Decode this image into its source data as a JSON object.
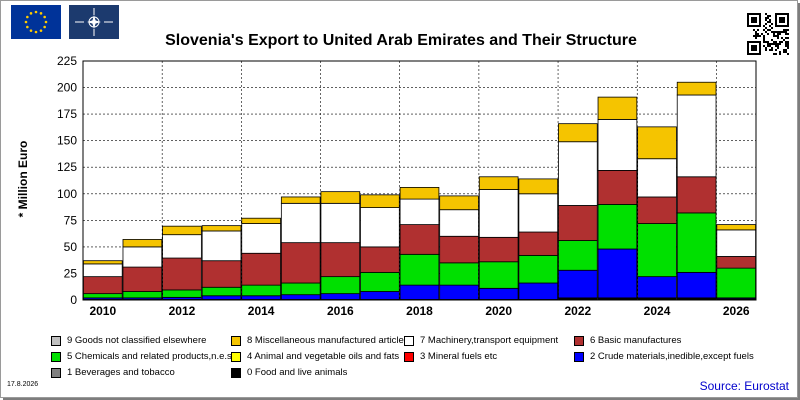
{
  "title": "Slovenia's Export to United Arab Emirates and Their Structure",
  "date": "17.8.2026",
  "source": "Source: Eurostat",
  "icons": {
    "eu_flag": "eu-flag-icon",
    "nato_flag": "nato-flag-icon",
    "qr": "qr-code-icon"
  },
  "colors": {
    "eu_flag_bg": "#003399",
    "eu_star": "#ffcc00",
    "nato_bg": "#1c3a6e",
    "source_text": "#0000cc"
  },
  "chart_data": {
    "type": "bar",
    "stacked": true,
    "title": "Slovenia's Export to United Arab Emirates and Their Structure",
    "ylabel": "* Million Euro",
    "xlabel": "",
    "ylim": [
      0,
      225
    ],
    "yticks": [
      0,
      25,
      50,
      75,
      100,
      125,
      150,
      175,
      200,
      225
    ],
    "grid": true,
    "legend_position": "bottom",
    "categories": [
      "2010",
      "2011",
      "2012",
      "2013",
      "2014",
      "2015",
      "2016",
      "2017",
      "2018",
      "2019",
      "2020",
      "2021",
      "2022",
      "2023",
      "2024",
      "2025",
      "2026"
    ],
    "xtick_labels": [
      "2010",
      "2012",
      "2014",
      "2016",
      "2018",
      "2020",
      "2022",
      "2024",
      "2026"
    ],
    "legend": [
      {
        "key": "s9",
        "label": "9 Goods not classified elsewhere"
      },
      {
        "key": "s8",
        "label": "8 Miscellaneous manufactured articles"
      },
      {
        "key": "s7",
        "label": "7 Machinery,transport equipment"
      },
      {
        "key": "s6",
        "label": "6 Basic manufactures"
      },
      {
        "key": "s5",
        "label": "5 Chemicals and related products,n.e.s."
      },
      {
        "key": "s4",
        "label": "4 Animal and vegetable oils and fats"
      },
      {
        "key": "s3",
        "label": "3 Mineral fuels etc"
      },
      {
        "key": "s2",
        "label": "2 Crude materials,inedible,except fuels"
      },
      {
        "key": "s1",
        "label": "1 Beverages and tobacco"
      },
      {
        "key": "s0",
        "label": "0 Food and live animals"
      }
    ],
    "series": [
      {
        "key": "s0",
        "color": "#000000",
        "values": [
          0.5,
          0.5,
          0.5,
          0.5,
          0.5,
          0.5,
          0.5,
          0.5,
          0.5,
          0.5,
          0.5,
          0.5,
          2,
          2,
          2,
          2,
          1
        ]
      },
      {
        "key": "s1",
        "color": "#808080",
        "values": [
          0,
          0,
          0,
          0,
          0,
          0,
          0,
          0,
          0,
          0,
          0,
          0,
          0,
          0,
          0,
          0,
          0
        ]
      },
      {
        "key": "s2",
        "color": "#0000ff",
        "values": [
          1.5,
          1.5,
          2,
          3.5,
          3.5,
          4.5,
          5.5,
          7.5,
          13.5,
          13.5,
          10.5,
          15.5,
          26,
          46,
          20,
          24,
          1
        ]
      },
      {
        "key": "s3",
        "color": "#ff0000",
        "values": [
          0,
          0,
          0,
          0,
          0,
          0,
          0,
          0,
          0,
          0,
          0,
          0,
          0,
          0,
          0,
          0,
          0
        ]
      },
      {
        "key": "s4",
        "color": "#ffff00",
        "values": [
          0,
          0,
          0,
          0,
          0,
          0,
          0,
          0,
          0,
          0,
          0,
          0,
          0,
          0,
          0,
          0,
          0
        ]
      },
      {
        "key": "s5",
        "color": "#00e000",
        "values": [
          4,
          6,
          7,
          8,
          10,
          11,
          16,
          18,
          29,
          21,
          25,
          26,
          28,
          42,
          50,
          56,
          28
        ]
      },
      {
        "key": "s6",
        "color": "#b03030",
        "values": [
          16,
          23,
          30,
          25,
          30,
          38,
          32,
          24,
          28,
          25,
          23,
          22,
          33,
          32,
          25,
          34,
          11
        ]
      },
      {
        "key": "s7",
        "color": "#ffffff",
        "values": [
          12,
          19,
          22,
          28,
          28,
          37,
          37,
          37,
          24,
          25,
          45,
          36,
          60,
          48,
          36,
          77,
          25
        ]
      },
      {
        "key": "s8",
        "color": "#f5c400",
        "values": [
          3,
          7,
          8,
          5,
          5,
          6,
          11,
          12,
          11,
          13,
          12,
          14,
          17,
          21,
          30,
          12,
          5
        ]
      },
      {
        "key": "s9",
        "color": "#c0c0c0",
        "values": [
          0,
          0,
          0,
          0,
          0,
          0,
          0,
          0,
          0,
          0,
          0,
          0,
          0,
          0,
          0,
          0,
          0
        ]
      }
    ]
  }
}
